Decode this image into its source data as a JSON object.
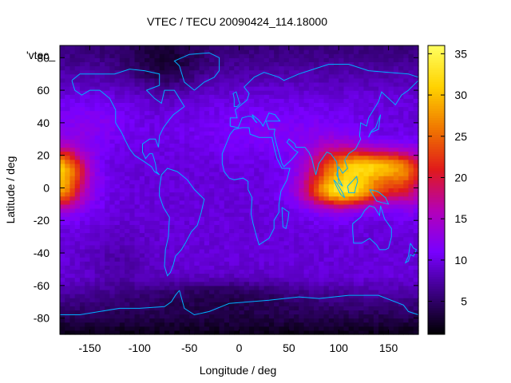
{
  "chart_data": {
    "type": "heatmap",
    "title": "VTEC / TECU 20090424_114.18000",
    "xlabel": "Longitude / deg",
    "ylabel": "Latitude / deg",
    "xlim": [
      -180,
      180
    ],
    "ylim": [
      -90,
      87.5
    ],
    "xticks": [
      -150,
      -100,
      -50,
      0,
      50,
      100,
      150
    ],
    "yticks": [
      -80,
      -60,
      -40,
      -20,
      0,
      20,
      40,
      60,
      80
    ],
    "colorbar": {
      "min": 1,
      "max": 36,
      "ticks": [
        5,
        10,
        15,
        20,
        25,
        30,
        35
      ]
    },
    "series_label": "'vtec_",
    "colormap": [
      "#000000",
      "#3a0080",
      "#7800ff",
      "#b400b8",
      "#e01a1a",
      "#f07800",
      "#ffd200",
      "#ffff60"
    ],
    "coastline_color": "#00b0ff",
    "grid_resolution": {
      "lat_step": 2.5,
      "lon_step": 5
    },
    "vtec_features": [
      {
        "region": "background",
        "value": 9.5
      },
      {
        "region": "equatorial-crest-asia",
        "lon": 135,
        "lat": 12,
        "peak": 31
      },
      {
        "region": "equatorial-crest-asia",
        "lon": 110,
        "lat": -2,
        "peak": 27
      },
      {
        "region": "equatorial-crest-pacific-west",
        "lon": -180,
        "lat": 10,
        "peak": 26
      },
      {
        "region": "high-latitude-north",
        "value": 5
      },
      {
        "region": "antarctic",
        "value": 3
      }
    ],
    "colorbar_ticks": [
      "5",
      "10",
      "15",
      "20",
      "25",
      "30",
      "35"
    ]
  }
}
